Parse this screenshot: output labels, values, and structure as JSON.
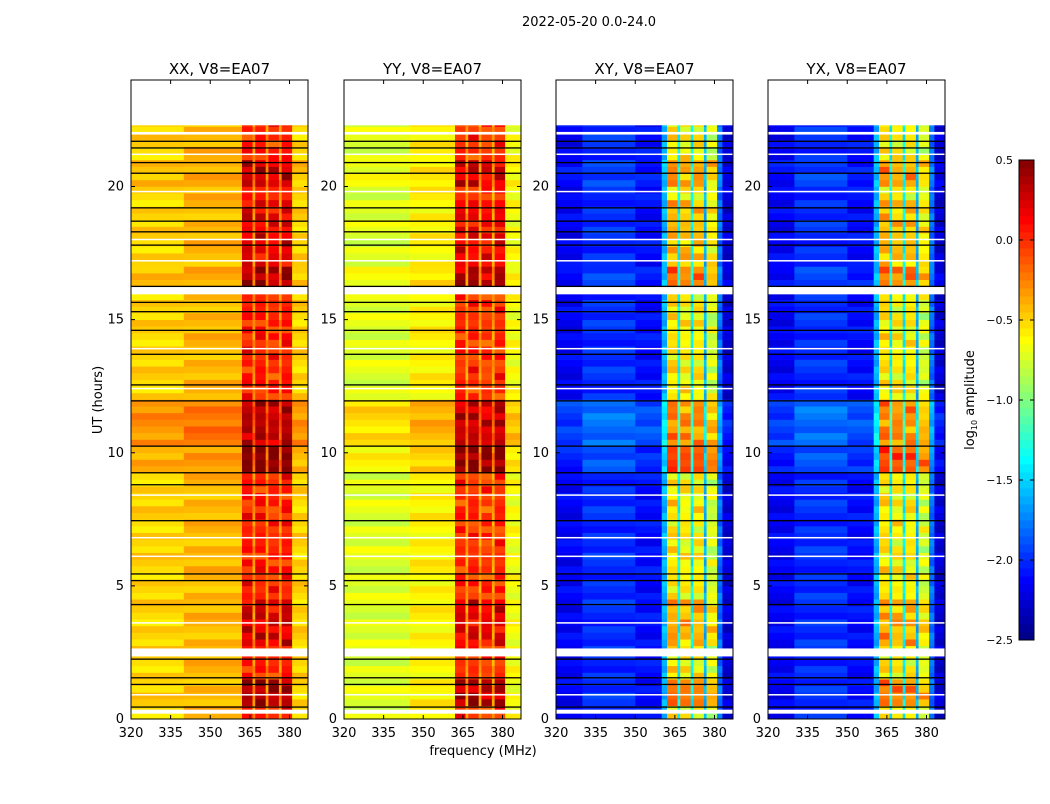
{
  "chart_data": {
    "type": "heatmap",
    "title": "2022-05-20 0.0-24.0",
    "xlabel": "frequency (MHz)",
    "ylabel": "UT (hours)",
    "xlim": [
      320,
      387
    ],
    "ylim": [
      0,
      24
    ],
    "xticks": [
      320,
      335,
      350,
      365,
      380
    ],
    "yticks": [
      0,
      5,
      10,
      15,
      20
    ],
    "data_hours": [
      0,
      22.3
    ],
    "row_step_hours": 0.25,
    "colorbar": {
      "label_main": "log",
      "label_sub": "10",
      "label_rest": " amplitude",
      "range": [
        -2.5,
        0.5
      ],
      "ticks": [
        "0.5",
        "0.0",
        "−0.5",
        "−1.0",
        "−1.5",
        "−2.0",
        "−2.5"
      ],
      "tick_values": [
        0.5,
        0.0,
        -0.5,
        -1.0,
        -1.5,
        -2.0,
        -2.5
      ],
      "colormap": "jet"
    },
    "time_offsets": [
      [
        0.35,
        1.3,
        0.0,
        0.35
      ],
      [
        2.65,
        4.3,
        0.0,
        0.2
      ],
      [
        9.25,
        10.25,
        0.1,
        0.4
      ],
      [
        10.25,
        12.0,
        0.2,
        0.1
      ],
      [
        16.25,
        17.0,
        0.05,
        0.3
      ],
      [
        17.0,
        19.5,
        0.0,
        0.15
      ],
      [
        20.0,
        21.0,
        0.05,
        0.2
      ]
    ],
    "white_gaps": [
      [
        0.2,
        0.35
      ],
      [
        2.35,
        2.65
      ],
      [
        15.95,
        16.25
      ],
      [
        21.95,
        22.05
      ]
    ],
    "black_lines": [
      0.45,
      1.3,
      1.55,
      2.25,
      4.3,
      5.2,
      5.45,
      7.45,
      8.8,
      9.25,
      10.25,
      11.95,
      12.55,
      13.7,
      14.6,
      15.3,
      15.65,
      16.25,
      17.8,
      18.3,
      18.7,
      19.2,
      20.5,
      20.9,
      21.45,
      21.7
    ],
    "white_lines": [
      0.9,
      3.6,
      6.1,
      6.8,
      8.4,
      12.4,
      13.9,
      17.2,
      18.0,
      19.8,
      21.2
    ],
    "panels": [
      {
        "title": "XX, V8=EA07",
        "segments": [
          [
            320,
            340,
            -0.5,
            0
          ],
          [
            340,
            362,
            -0.42,
            0
          ],
          [
            362,
            366,
            0.05,
            1
          ],
          [
            366,
            367,
            -0.3,
            0
          ],
          [
            367,
            371,
            0.05,
            1
          ],
          [
            371,
            372,
            -0.3,
            0
          ],
          [
            372,
            376,
            0.0,
            1
          ],
          [
            376,
            377,
            -0.3,
            0
          ],
          [
            377,
            381,
            0.05,
            1
          ],
          [
            381,
            387,
            -0.5,
            0
          ]
        ]
      },
      {
        "title": "YY, V8=EA07",
        "segments": [
          [
            320,
            345,
            -0.72,
            0
          ],
          [
            345,
            362,
            -0.6,
            0
          ],
          [
            362,
            366,
            0.0,
            1
          ],
          [
            366,
            367,
            -0.35,
            0
          ],
          [
            367,
            371,
            0.0,
            1
          ],
          [
            371,
            372,
            -0.35,
            0
          ],
          [
            372,
            376,
            -0.05,
            1
          ],
          [
            376,
            377,
            -0.35,
            0
          ],
          [
            377,
            381,
            0.0,
            1
          ],
          [
            381,
            387,
            -0.65,
            0
          ]
        ]
      },
      {
        "title": "XY, V8=EA07",
        "segments": [
          [
            320,
            330,
            -2.15,
            0
          ],
          [
            330,
            350,
            -2.0,
            0
          ],
          [
            350,
            360,
            -2.1,
            0
          ],
          [
            360,
            362,
            -1.6,
            0
          ],
          [
            362,
            366,
            -0.55,
            1
          ],
          [
            366,
            367,
            -1.4,
            0
          ],
          [
            367,
            371,
            -0.6,
            1
          ],
          [
            371,
            372,
            -1.4,
            0
          ],
          [
            372,
            376,
            -0.6,
            1
          ],
          [
            376,
            377,
            -1.6,
            0
          ],
          [
            377,
            381,
            -0.75,
            1
          ],
          [
            381,
            383,
            -1.8,
            0
          ],
          [
            383,
            387,
            -2.25,
            0
          ]
        ]
      },
      {
        "title": "YX, V8=EA07",
        "segments": [
          [
            320,
            330,
            -2.15,
            0
          ],
          [
            330,
            350,
            -2.0,
            0
          ],
          [
            350,
            360,
            -2.1,
            0
          ],
          [
            360,
            362,
            -1.6,
            0
          ],
          [
            362,
            366,
            -0.55,
            1
          ],
          [
            366,
            367,
            -1.4,
            0
          ],
          [
            367,
            371,
            -0.6,
            1
          ],
          [
            371,
            372,
            -1.4,
            0
          ],
          [
            372,
            376,
            -0.6,
            1
          ],
          [
            376,
            377,
            -1.6,
            0
          ],
          [
            377,
            381,
            -0.75,
            1
          ],
          [
            381,
            383,
            -1.8,
            0
          ],
          [
            383,
            387,
            -2.25,
            0
          ]
        ]
      }
    ]
  }
}
